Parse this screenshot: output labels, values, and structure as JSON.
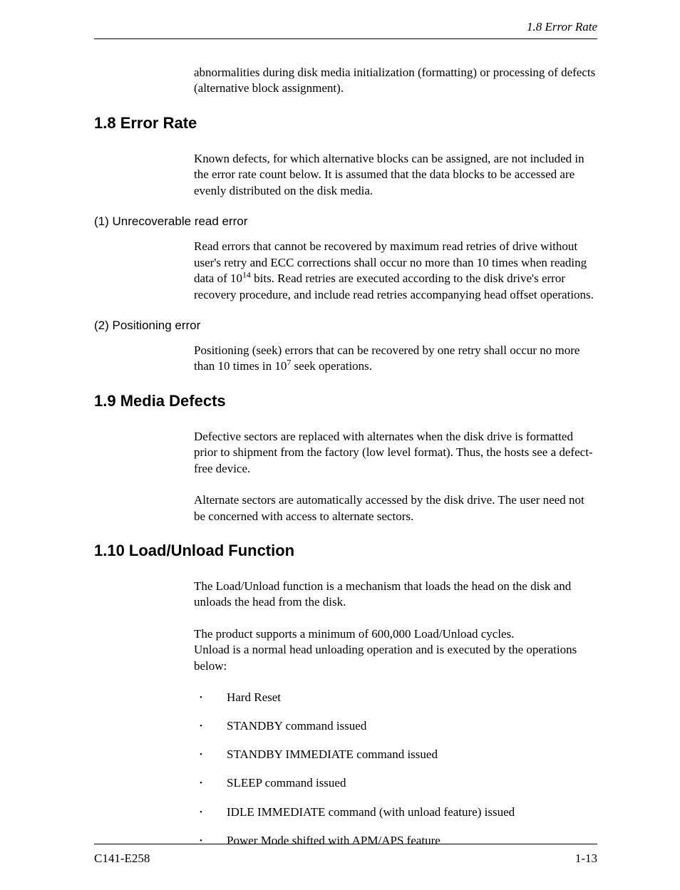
{
  "header": {
    "running_title": "1.8  Error Rate"
  },
  "intro_continuation": "abnormalities during disk media initialization (formatting) or processing of defects (alternative block assignment).",
  "section_1_8": {
    "heading": "1.8  Error Rate",
    "intro": "Known defects, for which alternative blocks can be assigned, are not included in the error rate count below.  It is assumed that the data blocks to be accessed are evenly distributed on the disk media.",
    "sub1": {
      "heading": "(1)  Unrecoverable read error",
      "text_before_exp": "Read errors that cannot be recovered by maximum read retries of drive without user's retry and ECC corrections shall occur no more than 10 times when reading data of 10",
      "exp": "14",
      "text_after_exp": " bits. Read retries are executed according to the disk drive's error recovery procedure, and include read retries accompanying head offset operations."
    },
    "sub2": {
      "heading": "(2)  Positioning error",
      "text_before_exp": "Positioning (seek) errors that can be recovered by one retry shall occur no more than 10 times in 10",
      "exp": "7",
      "text_after_exp": " seek operations."
    }
  },
  "section_1_9": {
    "heading": "1.9  Media Defects",
    "para1": "Defective sectors are replaced with alternates when the disk drive is formatted prior to shipment from the factory (low level format).  Thus, the hosts see a defect-free device.",
    "para2": "Alternate sectors are automatically accessed by the disk drive.  The user need not be concerned with access to alternate sectors."
  },
  "section_1_10": {
    "heading": "1.10  Load/Unload Function",
    "para1": "The Load/Unload function is a mechanism that loads the head on the disk and unloads the head from the disk.",
    "para2_line1": "The product supports a minimum of 600,000 Load/Unload cycles.",
    "para2_line2": "Unload is a normal head unloading operation and is executed by the operations below:",
    "bullets": [
      "Hard Reset",
      "STANDBY command issued",
      "STANDBY IMMEDIATE command issued",
      "SLEEP command issued",
      "IDLE IMMEDIATE command (with unload feature) issued",
      "Power Mode shifted with APM/APS feature"
    ]
  },
  "footer": {
    "left": "C141-E258",
    "right": "1-13"
  }
}
